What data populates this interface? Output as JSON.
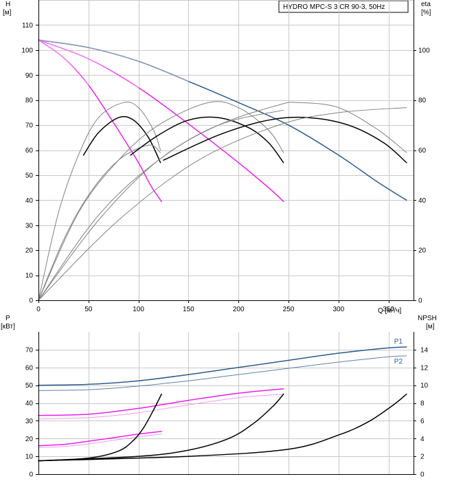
{
  "chart_data": [
    {
      "type": "line",
      "title": "HYDRO MPC-S 3 CR 90-3, 50Hz",
      "xlabel": "Q [м³/ч]",
      "ylabel": "H",
      "ylabel_unit": "[м]",
      "y2label": "eta",
      "y2label_unit": "[%]",
      "xlim": [
        0,
        375
      ],
      "ylim": [
        0,
        120
      ],
      "y2lim": [
        0,
        120
      ],
      "x_ticks": [
        "0",
        "50",
        "100",
        "150",
        "200",
        "250",
        "300",
        "350"
      ],
      "y_ticks": [
        "0",
        "10",
        "20",
        "30",
        "40",
        "50",
        "60",
        "70",
        "80",
        "90",
        "100",
        "110"
      ],
      "y2_ticks": [
        "0",
        "20",
        "40",
        "60",
        "80",
        "100"
      ],
      "grid": true,
      "series": [
        {
          "axis": "H",
          "color": "#2c5a8a",
          "width": 1.5,
          "x": [
            0,
            50,
            100,
            150,
            200,
            250,
            300,
            340,
            368
          ],
          "y": [
            104,
            101,
            95.5,
            87.5,
            79,
            70,
            58,
            47,
            40
          ]
        },
        {
          "axis": "H",
          "color": "#a0a0c8",
          "width": 1,
          "x": [
            0,
            50,
            100,
            150
          ],
          "y": [
            104,
            101,
            95.5,
            87.5
          ]
        },
        {
          "axis": "H",
          "color": "#e81ee8",
          "width": 1.5,
          "x": [
            0,
            50,
            100,
            150,
            200,
            230,
            245
          ],
          "y": [
            104,
            96.5,
            85,
            70.5,
            55,
            45,
            39.5
          ]
        },
        {
          "axis": "H",
          "color": "#f09cf0",
          "width": 1,
          "x": [
            0,
            50,
            100
          ],
          "y": [
            104,
            96.5,
            85
          ]
        },
        {
          "axis": "H",
          "color": "#e81ee8",
          "width": 1.5,
          "x": [
            0,
            25,
            50,
            75,
            100,
            112,
            123
          ],
          "y": [
            104,
            97,
            86,
            71,
            55,
            46,
            39.5
          ]
        },
        {
          "axis": "H",
          "color": "#f09cf0",
          "width": 1,
          "x": [
            0,
            25,
            50
          ],
          "y": [
            104,
            97,
            86
          ]
        },
        {
          "axis": "eta",
          "color": "#000000",
          "width": 1.5,
          "x": [
            45,
            60,
            80,
            95,
            110,
            122
          ],
          "y": [
            58,
            67,
            73,
            72,
            65,
            55
          ]
        },
        {
          "axis": "eta",
          "color": "#808080",
          "width": 1,
          "x": [
            0,
            20,
            40,
            60,
            85,
            100,
            115,
            122
          ],
          "y": [
            0,
            35,
            58,
            73,
            79,
            77,
            68,
            60
          ]
        },
        {
          "axis": "eta",
          "color": "#808080",
          "width": 1,
          "x": [
            0,
            25,
            50,
            80,
            110,
            122
          ],
          "y": [
            0,
            24,
            42,
            56,
            62,
            59
          ]
        },
        {
          "axis": "eta",
          "color": "#000000",
          "width": 1.5,
          "x": [
            92,
            120,
            150,
            180,
            210,
            230,
            245
          ],
          "y": [
            58,
            66,
            72,
            73,
            69,
            63,
            55
          ]
        },
        {
          "axis": "eta",
          "color": "#808080",
          "width": 1,
          "x": [
            0,
            40,
            80,
            120,
            170,
            200,
            230,
            245
          ],
          "y": [
            0,
            35,
            56,
            70,
            79,
            77,
            68,
            59
          ]
        },
        {
          "axis": "eta",
          "color": "#808080",
          "width": 1,
          "x": [
            0,
            60,
            120,
            180,
            245
          ],
          "y": [
            0,
            34,
            56,
            70,
            76
          ]
        },
        {
          "axis": "eta",
          "color": "#000000",
          "width": 1.5,
          "x": [
            125,
            180,
            230,
            270,
            310,
            345,
            368
          ],
          "y": [
            56,
            66,
            72,
            73,
            70,
            63,
            55
          ]
        },
        {
          "axis": "eta",
          "color": "#808080",
          "width": 1,
          "x": [
            0,
            60,
            120,
            180,
            240,
            260,
            300,
            340,
            368
          ],
          "y": [
            0,
            32,
            56,
            70,
            78,
            79,
            77,
            68,
            59
          ]
        },
        {
          "axis": "eta",
          "color": "#808080",
          "width": 1,
          "x": [
            0,
            80,
            160,
            240,
            300,
            368
          ],
          "y": [
            0,
            32,
            56,
            70,
            75,
            77
          ]
        }
      ]
    },
    {
      "type": "line",
      "xlabel": "",
      "ylabel": "P",
      "ylabel_unit": "[кВт]",
      "y2label": "NPSH",
      "y2label_unit": "[м]",
      "xlim": [
        0,
        375
      ],
      "ylim": [
        0,
        80
      ],
      "y2lim": [
        0,
        16
      ],
      "y_ticks": [
        "0",
        "10",
        "20",
        "30",
        "40",
        "50",
        "60",
        "70"
      ],
      "y2_ticks": [
        "0",
        "2",
        "4",
        "6",
        "8",
        "10",
        "12",
        "14"
      ],
      "grid": true,
      "series": [
        {
          "name": "P1",
          "axis": "P",
          "color": "#2c5a8a",
          "width": 1.5,
          "x": [
            0,
            50,
            100,
            150,
            200,
            250,
            300,
            350,
            368
          ],
          "y": [
            50,
            50.5,
            52.5,
            56,
            60,
            64,
            68,
            71,
            71.5
          ]
        },
        {
          "name": "P2",
          "axis": "P",
          "color": "#5e80aa",
          "width": 1,
          "x": [
            0,
            50,
            100,
            150,
            200,
            250,
            300,
            350,
            368
          ],
          "y": [
            47,
            47.5,
            49.5,
            52.5,
            56,
            59.5,
            63,
            66,
            66.5
          ]
        },
        {
          "axis": "P",
          "color": "#e81ee8",
          "width": 1.5,
          "x": [
            0,
            50,
            100,
            150,
            200,
            245
          ],
          "y": [
            33,
            33.7,
            37,
            41.5,
            45.5,
            48
          ]
        },
        {
          "axis": "P",
          "color": "#f09cf0",
          "width": 1,
          "x": [
            0,
            50,
            100,
            150,
            200,
            245
          ],
          "y": [
            31,
            31.8,
            34.5,
            39,
            43,
            45
          ]
        },
        {
          "axis": "P",
          "color": "#e81ee8",
          "width": 1.5,
          "x": [
            0,
            25,
            50,
            75,
            100,
            123
          ],
          "y": [
            16,
            16.7,
            18.5,
            20.5,
            22.5,
            24
          ]
        },
        {
          "axis": "P",
          "color": "#f09cf0",
          "width": 1,
          "x": [
            0,
            25,
            50,
            75,
            100,
            123
          ],
          "y": [
            15,
            15.5,
            17,
            19,
            21,
            22.5
          ]
        },
        {
          "axis": "NPSH",
          "color": "#000000",
          "width": 1.5,
          "x": [
            0,
            50,
            80,
            95,
            105,
            115,
            123
          ],
          "y": [
            1.5,
            1.8,
            2.6,
            3.8,
            5.2,
            7.2,
            9
          ]
        },
        {
          "axis": "NPSH",
          "color": "#000000",
          "width": 1.5,
          "x": [
            0,
            100,
            150,
            190,
            215,
            235,
            245
          ],
          "y": [
            1.5,
            2,
            2.7,
            4,
            5.7,
            7.7,
            9
          ]
        },
        {
          "axis": "NPSH",
          "color": "#000000",
          "width": 1.5,
          "x": [
            0,
            150,
            250,
            300,
            330,
            355,
            368
          ],
          "y": [
            1.5,
            2,
            2.8,
            4.4,
            5.9,
            7.8,
            9
          ]
        }
      ]
    }
  ]
}
